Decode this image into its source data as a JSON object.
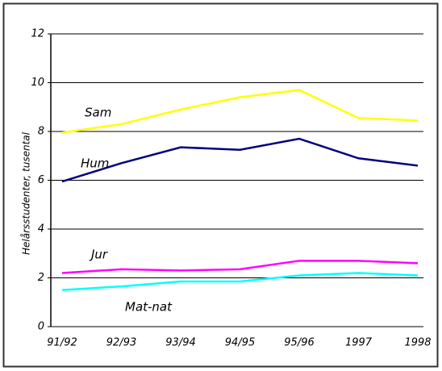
{
  "chart_data": {
    "type": "line",
    "y_label": "Helårsstudenter, tusental",
    "categories": [
      "91/92",
      "92/93",
      "93/94",
      "94/95",
      "95/96",
      "1997",
      "1998"
    ],
    "series": [
      {
        "name": "Sam",
        "color": "#ffff00",
        "values": [
          7.95,
          8.3,
          8.9,
          9.4,
          9.7,
          8.55,
          8.45
        ]
      },
      {
        "name": "Hum",
        "color": "#000080",
        "values": [
          5.95,
          6.7,
          7.35,
          7.25,
          7.7,
          6.9,
          6.6
        ]
      },
      {
        "name": "Jur",
        "color": "#ff00ff",
        "values": [
          2.2,
          2.35,
          2.3,
          2.35,
          2.7,
          2.7,
          2.6
        ]
      },
      {
        "name": "Mat-nat",
        "color": "#00ffff",
        "values": [
          1.5,
          1.65,
          1.85,
          1.85,
          2.1,
          2.2,
          2.1
        ]
      }
    ],
    "ylim": [
      0,
      12
    ],
    "yticks": [
      0,
      2,
      4,
      6,
      8,
      10,
      12
    ],
    "grid": true
  }
}
